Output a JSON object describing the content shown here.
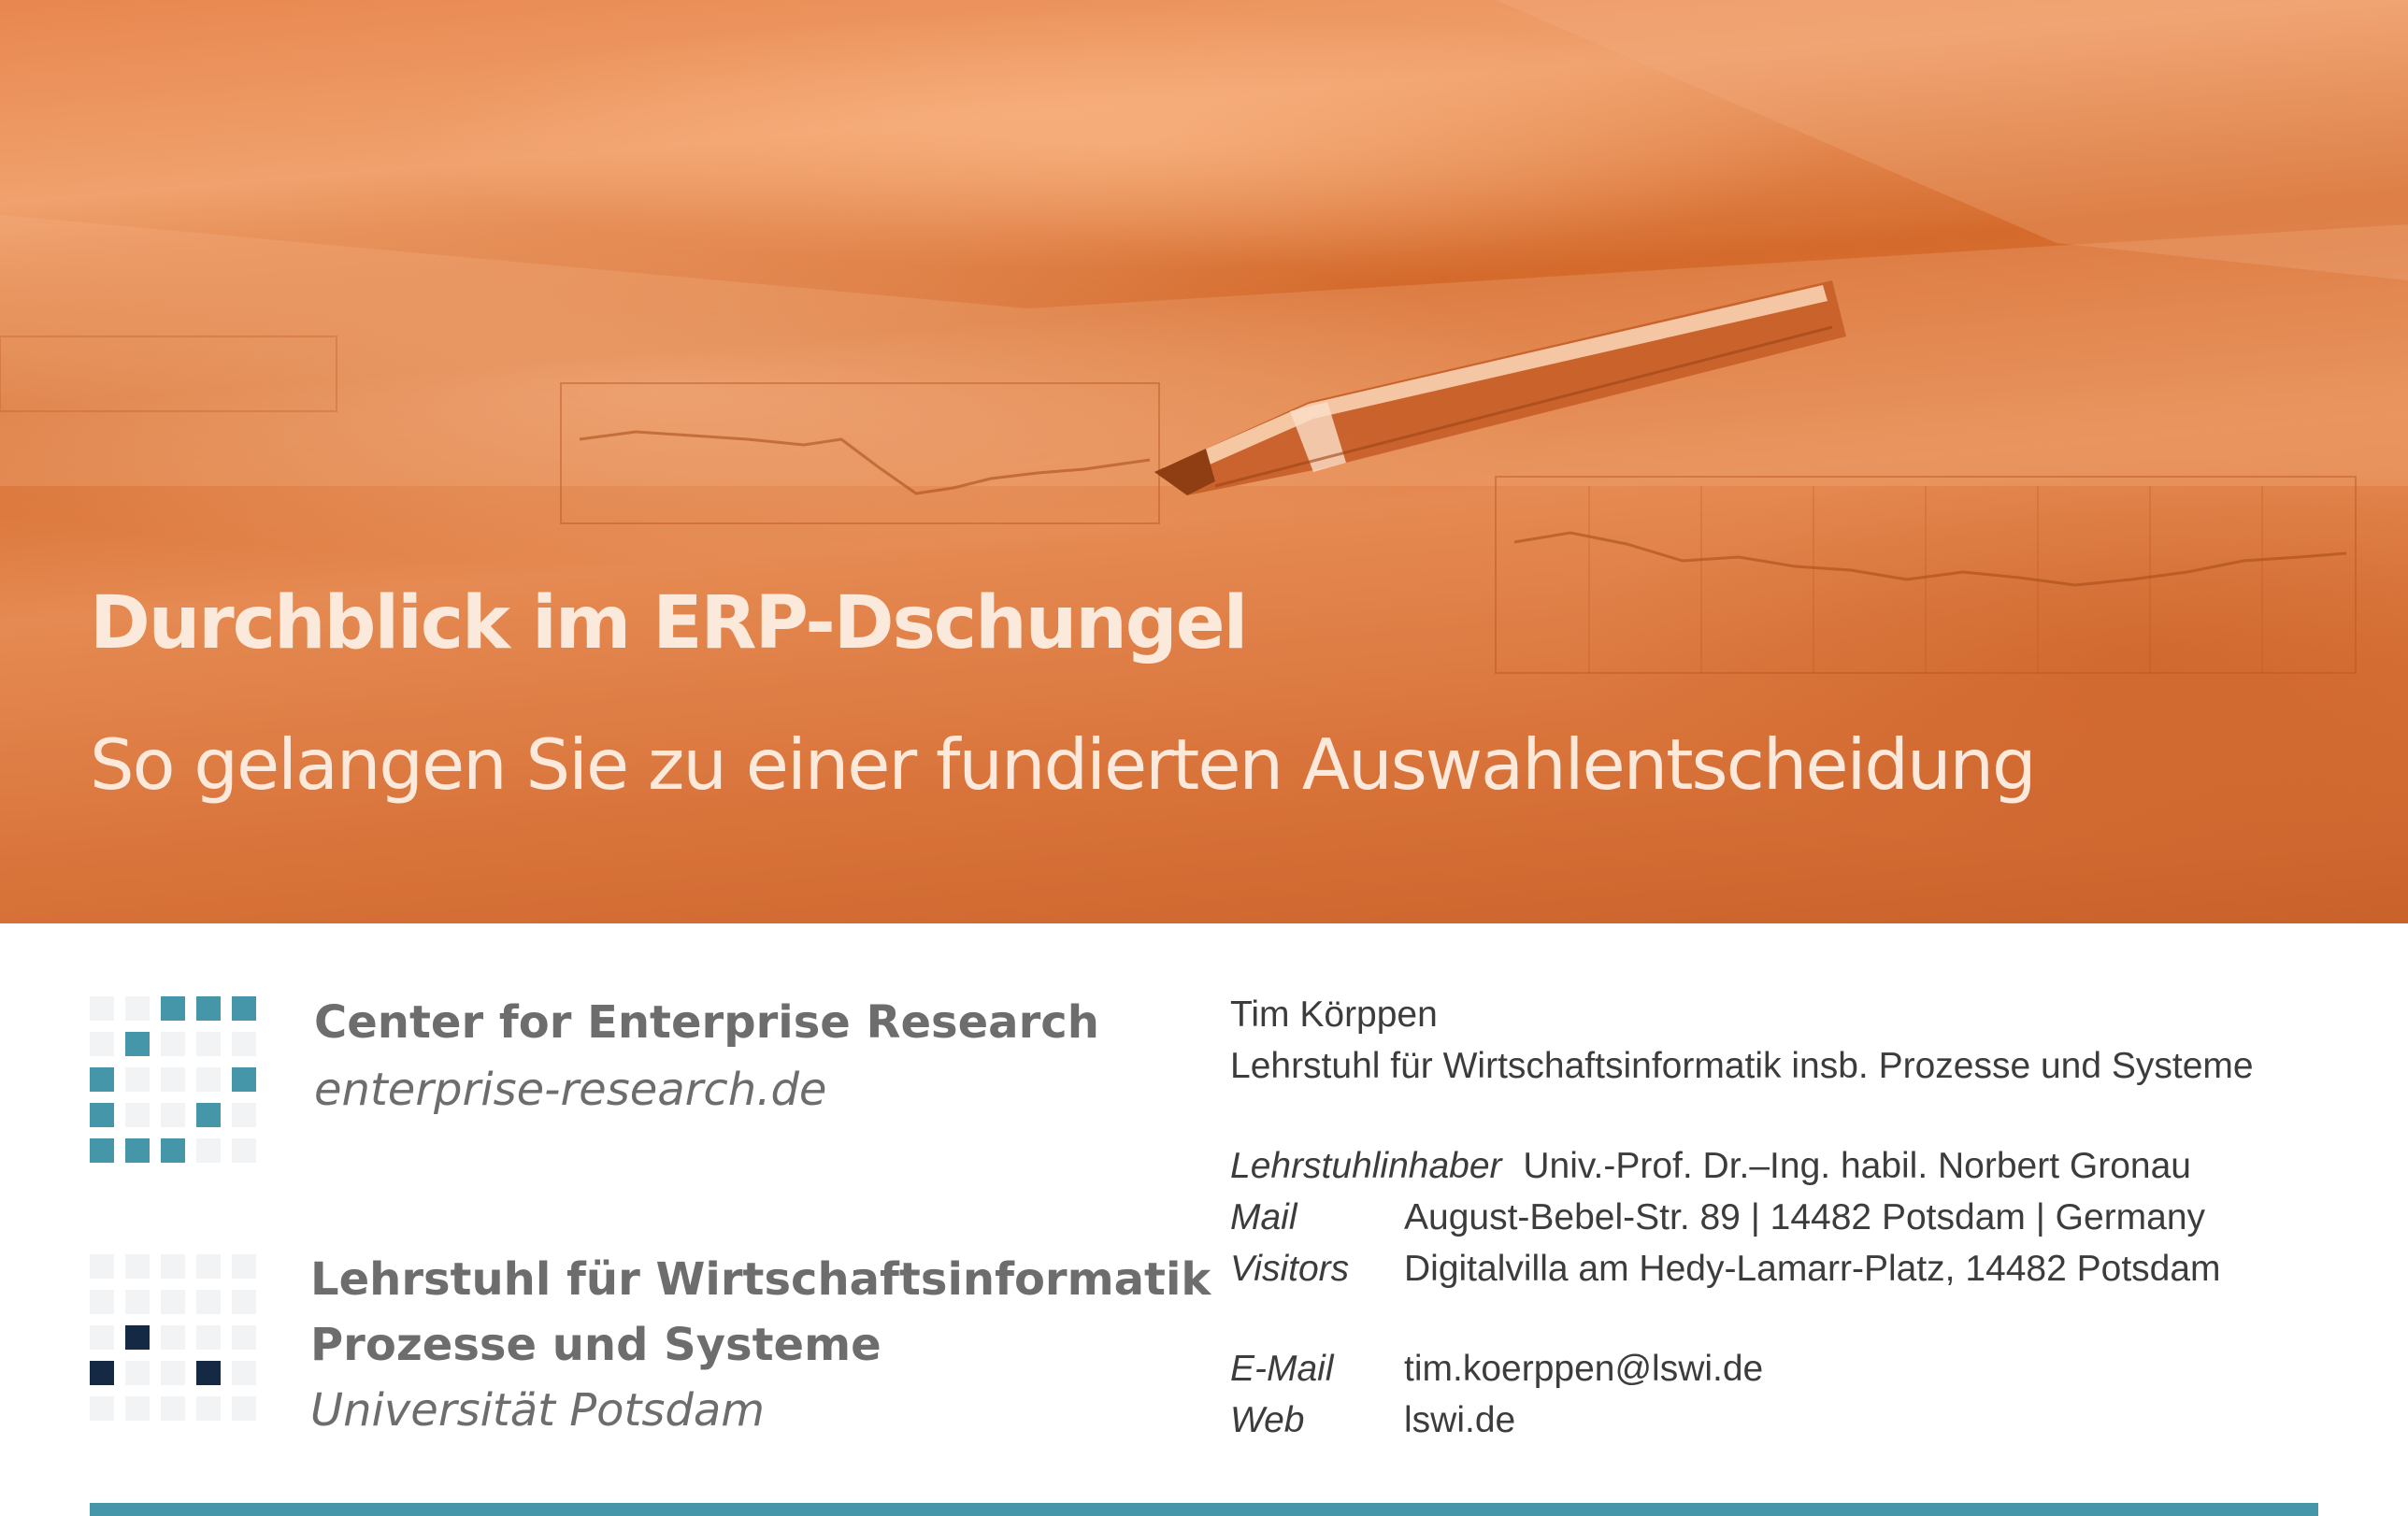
{
  "hero": {
    "title": "Durchblick im ERP-Dschungel",
    "subtitle": "So gelangen Sie zu einer fundierten Auswahlentscheidung"
  },
  "cer": {
    "name": "Center for Enterprise Research",
    "url": "enterprise-research.de"
  },
  "lswi": {
    "line1": "Lehrstuhl für Wirtschaftsinformatik",
    "line2": "Prozesse und Systeme",
    "line3": "Universität Potsdam"
  },
  "contact": {
    "name": "Tim Körppen",
    "chair": "Lehrstuhl für Wirtschaftsinformatik insb. Prozesse und Systeme",
    "holder_label": "Lehrstuhlinhaber",
    "holder_value": "Univ.-Prof. Dr.–Ing. habil. Norbert Gronau",
    "mail_label": "Mail",
    "mail_value": "August-Bebel-Str. 89 | 14482 Potsdam | Germany",
    "visitors_label": "Visitors",
    "visitors_value": "Digitalvilla am Hedy-Lamarr-Platz, 14482 Potsdam",
    "email_label": "E-Mail",
    "email_value": "tim.koerppen@lswi.de",
    "web_label": "Web",
    "web_value": "lswi.de"
  },
  "colors": {
    "hero_orange": "#d46a2c",
    "teal": "#4596a8",
    "navy": "#142a44",
    "text_gray": "#6d6d6d"
  }
}
